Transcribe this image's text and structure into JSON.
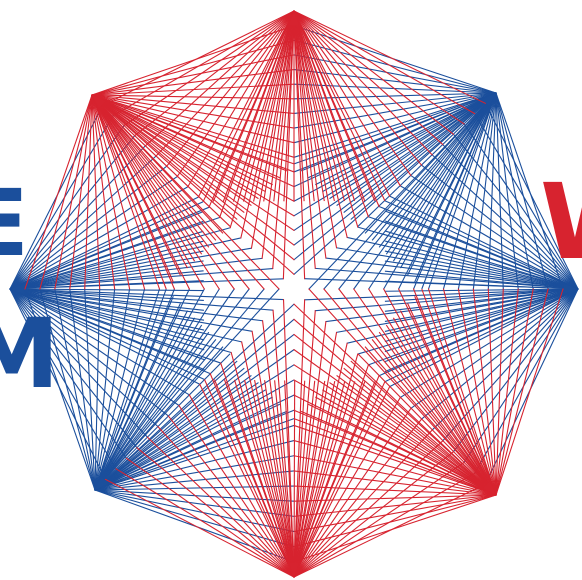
{
  "logo": {
    "colors": {
      "red": "#d7232f",
      "blue": "#1b4f9c"
    },
    "edge_letters": {
      "left_top": "E",
      "left_bottom": "M",
      "right": "W"
    },
    "star": {
      "points": 8,
      "lines_per_petal_side": 18,
      "red_petals": [
        "top",
        "top-left",
        "bottom",
        "bottom-right"
      ],
      "blue_petals": [
        "left",
        "top-right",
        "right",
        "bottom-left"
      ]
    }
  }
}
